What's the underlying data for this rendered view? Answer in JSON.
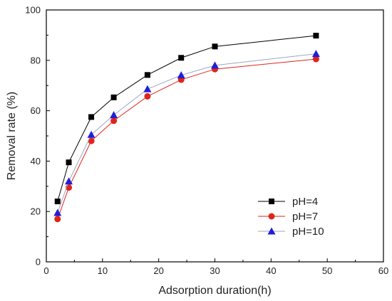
{
  "chart_data": {
    "type": "line",
    "xlabel": "Adsorption duration(h)",
    "ylabel": "Removal rate (%)",
    "xlim": [
      0,
      60
    ],
    "ylim": [
      0,
      100
    ],
    "xticks": [
      "0",
      "10",
      "20",
      "30",
      "40",
      "50",
      "60"
    ],
    "yticks": [
      "0",
      "20",
      "40",
      "60",
      "80",
      "100"
    ],
    "grid": false,
    "legend_position": "bottom-right",
    "x": [
      2,
      4,
      8,
      12,
      18,
      24,
      30,
      48
    ],
    "series": [
      {
        "name": "pH=4",
        "marker": "square",
        "color": "#000000",
        "line_color": "#000000",
        "values": [
          24,
          39.5,
          57.5,
          65.3,
          74.2,
          81,
          85.5,
          89.8
        ]
      },
      {
        "name": "pH=7",
        "marker": "circle",
        "color": "#e0241b",
        "line_color": "#e0241b",
        "values": [
          17,
          29.5,
          48,
          56,
          65.7,
          72.3,
          76.5,
          80.5
        ]
      },
      {
        "name": "pH=10",
        "marker": "triangle",
        "color": "#1f1fd6",
        "line_color": "#9aa6c8",
        "values": [
          19.5,
          32,
          50.5,
          58.3,
          68.6,
          74.1,
          78,
          82.6
        ]
      }
    ]
  }
}
